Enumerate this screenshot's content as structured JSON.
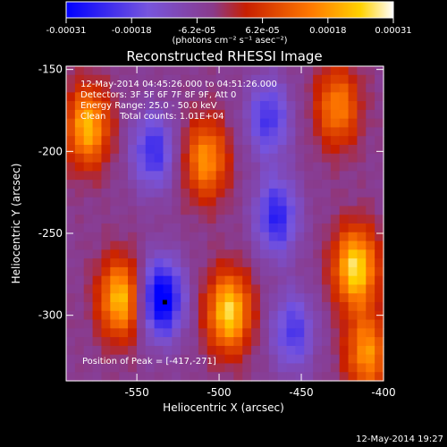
{
  "colorbar": {
    "tick_labels": [
      "-0.00031",
      "-0.00018",
      "-6.2e-05",
      "6.2e-05",
      "0.00018",
      "0.00031"
    ],
    "unit_label": "(photons cm⁻² s⁻¹ asec⁻²)",
    "range": [
      -0.00031,
      0.00031
    ]
  },
  "info": {
    "time_range": "12-May-2014 04:45:26.000 to 04:51:26.000",
    "detectors": "Detectors: 3F 5F 6F 7F 8F 9F, Att 0",
    "energy": "Energy Range: 25.0 - 50.0 keV",
    "clean": "Clean     Total counts: 1.01E+04",
    "peak": "Position of Peak = [-417,-271]"
  },
  "footer": {
    "timestamp": "12-May-2014 19:27"
  },
  "chart_data": {
    "type": "heatmap",
    "title": "Reconstructed RHESSI Image",
    "xlabel": "Heliocentric X (arcsec)",
    "ylabel": "Heliocentric Y (arcsec)",
    "xlim": [
      -593,
      -400
    ],
    "ylim": [
      -340,
      -148
    ],
    "x_ticks": [
      -550,
      -500,
      -450,
      -400
    ],
    "x_tick_labels": [
      "-550",
      "-500",
      "-450",
      "-400"
    ],
    "y_ticks": [
      -150,
      -200,
      -250,
      -300
    ],
    "y_tick_labels": [
      "-150",
      "-200",
      "-250",
      "-300"
    ],
    "grid": false,
    "peak_position": [
      -417,
      -271
    ],
    "colormap": [
      "#0000ff",
      "#7755dd",
      "#8a3a8a",
      "#c81f00",
      "#ff7a00",
      "#ffd200",
      "#ffffff"
    ],
    "sources": [
      {
        "x": -580,
        "y": -185,
        "amp": 0.00026
      },
      {
        "x": -560,
        "y": -290,
        "amp": 0.00027
      },
      {
        "x": -508,
        "y": -205,
        "amp": 0.00022
      },
      {
        "x": -494,
        "y": -298,
        "amp": 0.0003
      },
      {
        "x": -428,
        "y": -173,
        "amp": 0.0002
      },
      {
        "x": -417,
        "y": -271,
        "amp": 0.00031
      },
      {
        "x": -410,
        "y": -323,
        "amp": 0.00022
      },
      {
        "x": -535,
        "y": -290,
        "amp": -0.0003
      },
      {
        "x": -540,
        "y": -200,
        "amp": -0.00019
      },
      {
        "x": -465,
        "y": -240,
        "amp": -0.00021
      },
      {
        "x": -470,
        "y": -180,
        "amp": -0.00018
      },
      {
        "x": -455,
        "y": -310,
        "amp": -0.00017
      }
    ]
  }
}
